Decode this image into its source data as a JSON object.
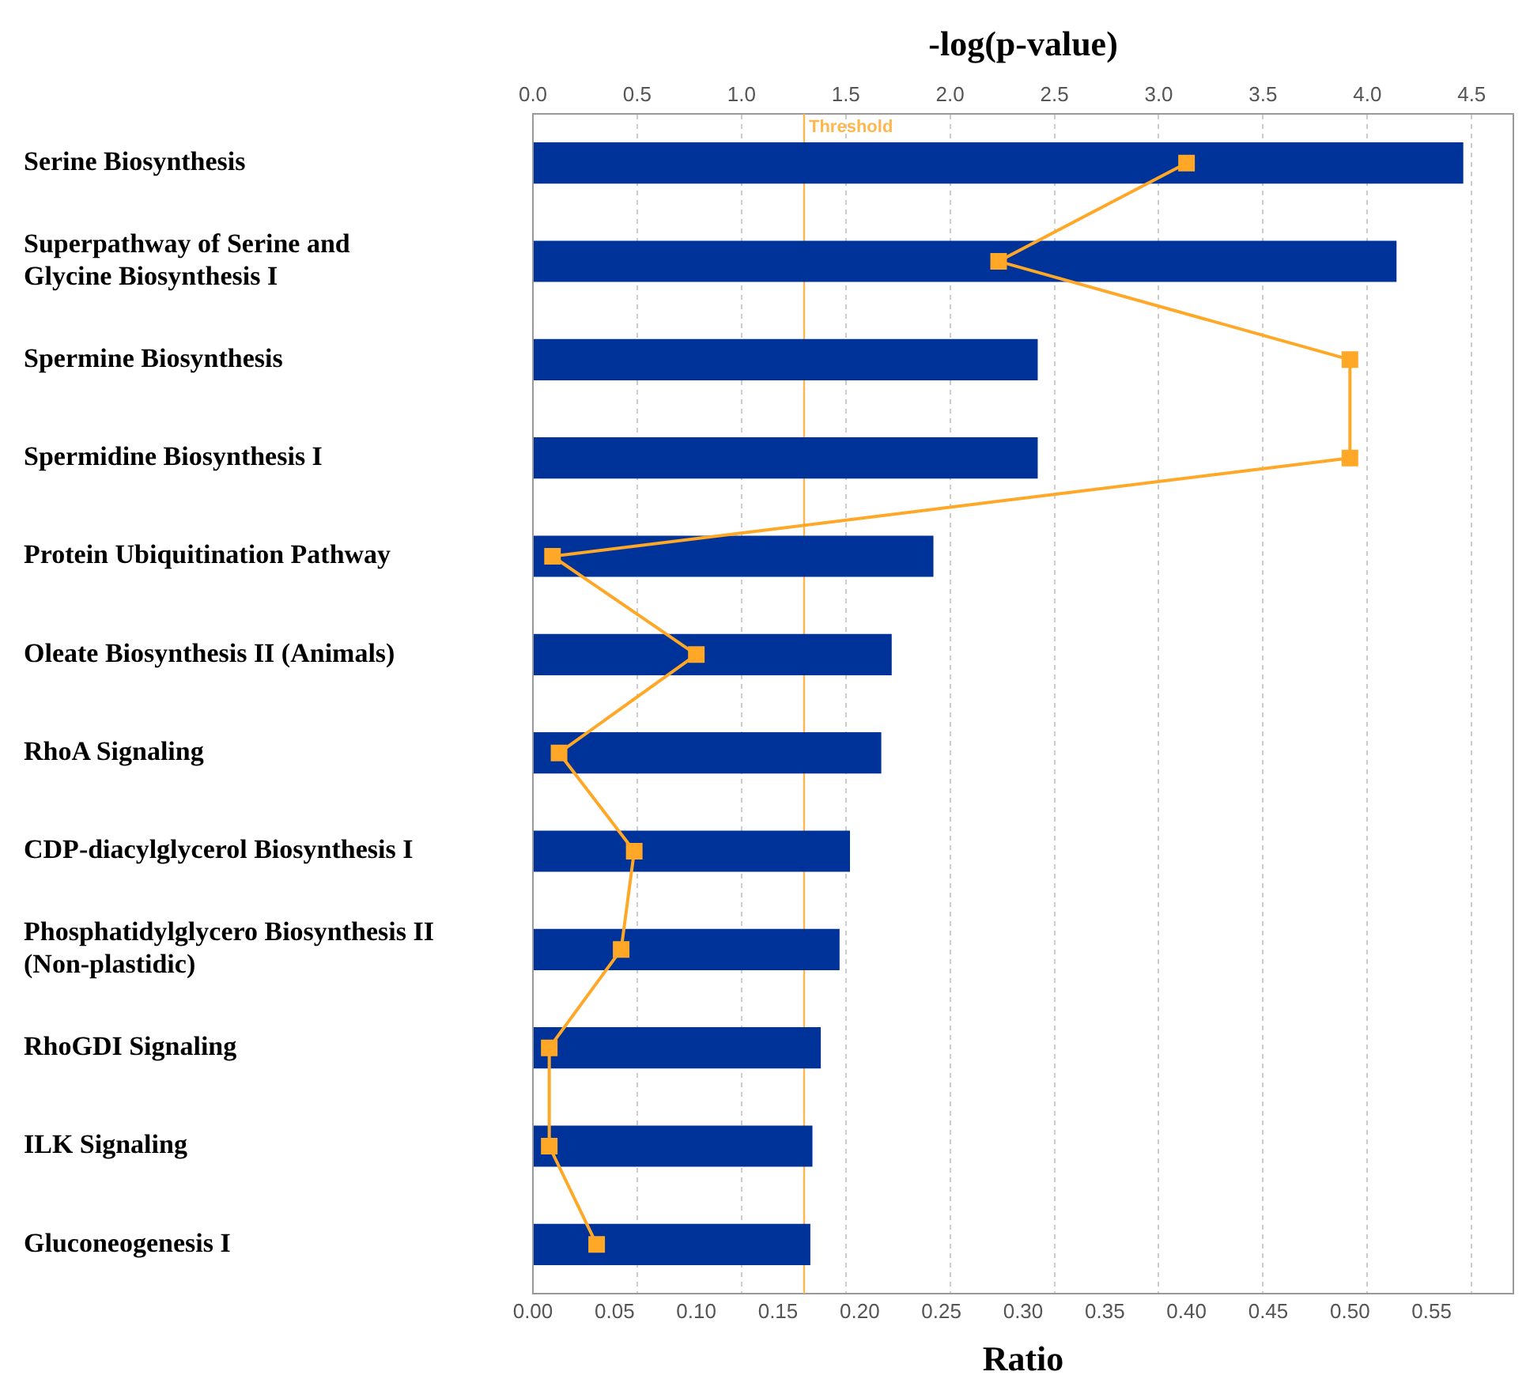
{
  "chart_data": {
    "type": "bar",
    "orientation": "horizontal",
    "x2label": "-log(p-value)",
    "xlabel": "Ratio",
    "categories": [
      "Serine Biosynthesis",
      "Superpathway of Serine and Glycine Biosynthesis I",
      "Spermine Biosynthesis",
      "Spermidine Biosynthesis I",
      "Protein Ubiquitination Pathway",
      "Oleate Biosynthesis II (Animals)",
      "RhoA Signaling",
      "CDP-diacylglycerol Biosynthesis I",
      "Phosphatidylglycero Biosynthesis II (Non-plastidic)",
      "RhoGDI Signaling",
      "ILK Signaling",
      "Gluconeogenesis I"
    ],
    "series": [
      {
        "axis": "x2",
        "color": "#003399",
        "values": [
          4.46,
          4.14,
          2.42,
          2.42,
          1.92,
          1.72,
          1.67,
          1.52,
          1.47,
          1.38,
          1.34,
          1.33
        ]
      },
      {
        "type": "line",
        "color": "#ffa726",
        "marker": "square",
        "values": [
          0.4,
          0.285,
          0.5,
          0.5,
          0.012,
          0.1,
          0.016,
          0.062,
          0.054,
          0.01,
          0.01,
          0.039
        ]
      }
    ],
    "xlim": [
      0,
      0.6
    ],
    "xticks": [
      {
        "value": 0,
        "label": "0.00"
      },
      0.05,
      {
        "value": 0.1,
        "label": "0.10"
      },
      0.15,
      {
        "value": 0.2,
        "label": "0.20"
      },
      0.25,
      {
        "value": 0.3,
        "label": "0.30"
      },
      0.35,
      {
        "value": 0.4,
        "label": "0.40"
      },
      0.45,
      {
        "value": 0.5,
        "label": "0.50"
      },
      0.55
    ],
    "x2lim": [
      0,
      4.7
    ],
    "x2ticks": [
      {
        "value": 0,
        "label": "0.0"
      },
      0.5,
      {
        "value": 1,
        "label": "1.0"
      },
      1.5,
      {
        "value": 2,
        "label": "2.0"
      },
      2.5,
      {
        "value": 3,
        "label": "3.0"
      },
      3.5,
      {
        "value": 4,
        "label": "4.0"
      },
      4.5
    ],
    "ref_lines": [
      {
        "axis": "x2",
        "value": 1.3,
        "label": "Threshold",
        "color": "#ffb74d"
      }
    ],
    "grid": "x2",
    "legend": false
  }
}
